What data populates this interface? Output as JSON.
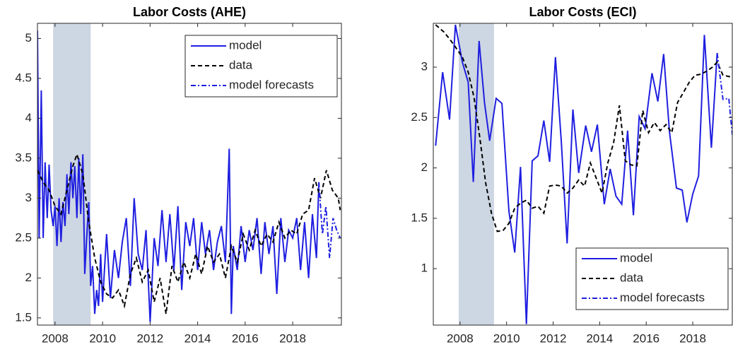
{
  "chart_data": [
    {
      "type": "line",
      "title": "Labor Costs (AHE)",
      "xlim": [
        2007.26,
        2020.05
      ],
      "ylim": [
        1.41,
        5.19
      ],
      "xticks": [
        2008,
        2010,
        2012,
        2014,
        2016,
        2018
      ],
      "yticks": [
        1.5,
        2,
        2.5,
        3,
        3.5,
        4,
        4.5,
        5
      ],
      "shaded_region": [
        2007.92,
        2009.5
      ],
      "shaded_color": "#cdd6e3",
      "legend": "upper right",
      "series": [
        {
          "name": "model",
          "color": "#1f1fe0",
          "style": "solid",
          "x": [
            2007.26,
            2007.33,
            2007.42,
            2007.5,
            2007.58,
            2007.67,
            2007.75,
            2007.83,
            2007.92,
            2008.0,
            2008.08,
            2008.17,
            2008.25,
            2008.33,
            2008.42,
            2008.5,
            2008.58,
            2008.67,
            2008.75,
            2008.83,
            2008.92,
            2009.0,
            2009.08,
            2009.17,
            2009.25,
            2009.33,
            2009.42,
            2009.5,
            2009.58,
            2009.67,
            2009.75,
            2009.83,
            2009.92,
            2010.0,
            2010.17,
            2010.33,
            2010.5,
            2010.67,
            2010.83,
            2011.0,
            2011.17,
            2011.33,
            2011.5,
            2011.67,
            2011.83,
            2012.0,
            2012.17,
            2012.33,
            2012.5,
            2012.67,
            2012.83,
            2013.0,
            2013.17,
            2013.33,
            2013.5,
            2013.67,
            2013.83,
            2014.0,
            2014.17,
            2014.33,
            2014.5,
            2014.67,
            2014.83,
            2015.0,
            2015.17,
            2015.33,
            2015.42,
            2015.5,
            2015.67,
            2015.83,
            2016.0,
            2016.17,
            2016.33,
            2016.5,
            2016.67,
            2016.83,
            2017.0,
            2017.17,
            2017.33,
            2017.5,
            2017.67,
            2017.83,
            2018.0,
            2018.17,
            2018.33,
            2018.5,
            2018.67,
            2018.83,
            2019.0,
            2019.1
          ],
          "values": [
            5.1,
            2.5,
            4.35,
            2.5,
            3.45,
            2.75,
            3.42,
            2.85,
            2.65,
            2.9,
            2.4,
            3.0,
            2.45,
            2.95,
            2.65,
            3.3,
            2.8,
            3.45,
            3.0,
            3.4,
            2.75,
            3.5,
            2.8,
            3.55,
            2.05,
            2.5,
            2.95,
            1.9,
            2.15,
            1.55,
            1.85,
            1.65,
            2.3,
            1.7,
            2.55,
            1.75,
            2.35,
            2.0,
            2.45,
            2.75,
            1.9,
            3.0,
            2.3,
            2.1,
            2.6,
            1.45,
            2.5,
            2.15,
            2.85,
            2.2,
            2.8,
            2.1,
            2.9,
            1.85,
            2.7,
            2.4,
            2.75,
            2.1,
            2.7,
            2.3,
            2.6,
            2.1,
            2.45,
            2.65,
            2.2,
            3.62,
            1.55,
            2.4,
            2.1,
            2.65,
            2.2,
            2.6,
            2.35,
            2.75,
            2.05,
            2.7,
            2.3,
            2.65,
            1.8,
            2.75,
            2.2,
            2.6,
            2.5,
            2.75,
            2.1,
            2.7,
            2.0,
            2.8,
            2.25,
            3.2
          ]
        },
        {
          "name": "data",
          "color": "#000000",
          "style": "dashed",
          "x": [
            2007.26,
            2007.5,
            2007.75,
            2008.0,
            2008.25,
            2008.5,
            2008.75,
            2008.92,
            2009.17,
            2009.42,
            2009.67,
            2009.92,
            2010.17,
            2010.42,
            2010.67,
            2010.92,
            2011.17,
            2011.42,
            2011.67,
            2011.92,
            2012.17,
            2012.42,
            2012.67,
            2012.92,
            2013.17,
            2013.42,
            2013.67,
            2013.92,
            2014.17,
            2014.42,
            2014.67,
            2014.92,
            2015.17,
            2015.42,
            2015.67,
            2015.92,
            2016.17,
            2016.42,
            2016.67,
            2016.92,
            2017.17,
            2017.42,
            2017.67,
            2017.92,
            2018.17,
            2018.42,
            2018.67,
            2018.92,
            2019.17,
            2019.42,
            2019.67,
            2019.92,
            2020.0
          ],
          "values": [
            3.35,
            3.2,
            3.1,
            2.9,
            2.8,
            3.1,
            3.4,
            3.55,
            3.3,
            2.7,
            2.25,
            1.95,
            1.8,
            1.75,
            1.85,
            1.65,
            2.05,
            2.25,
            1.95,
            2.1,
            1.7,
            2.0,
            1.55,
            2.15,
            1.95,
            2.2,
            2.0,
            2.3,
            2.05,
            2.4,
            2.2,
            2.3,
            2.0,
            2.4,
            2.2,
            2.55,
            2.35,
            2.6,
            2.4,
            2.55,
            2.45,
            2.7,
            2.5,
            2.6,
            2.55,
            2.8,
            2.85,
            3.25,
            3.0,
            3.35,
            3.1,
            3.0,
            2.85
          ]
        },
        {
          "name": "model forecasts",
          "color": "#1f1fe0",
          "style": "dashdot",
          "x": [
            2019.1,
            2019.25,
            2019.4,
            2019.55,
            2019.7,
            2019.85,
            2020.0
          ],
          "values": [
            3.2,
            2.55,
            2.9,
            2.25,
            2.75,
            2.6,
            2.5
          ]
        }
      ]
    },
    {
      "type": "line",
      "title": "Labor Costs (ECI)",
      "xlim": [
        2006.85,
        2019.7
      ],
      "ylim": [
        0.44,
        3.435
      ],
      "xticks": [
        2008,
        2010,
        2012,
        2014,
        2016,
        2018
      ],
      "yticks": [
        1,
        1.5,
        2,
        2.5,
        3
      ],
      "shaded_region": [
        2007.94,
        2009.46
      ],
      "shaded_color": "#cdd6e3",
      "legend": "lower right",
      "series": [
        {
          "name": "model",
          "color": "#1f1fe0",
          "style": "solid",
          "x": [
            2006.95,
            2007.25,
            2007.55,
            2007.8,
            2008.1,
            2008.35,
            2008.57,
            2008.82,
            2009.05,
            2009.27,
            2009.55,
            2009.8,
            2010.1,
            2010.35,
            2010.6,
            2010.85,
            2011.1,
            2011.35,
            2011.6,
            2011.85,
            2012.1,
            2012.35,
            2012.6,
            2012.85,
            2013.1,
            2013.4,
            2013.65,
            2013.9,
            2014.2,
            2014.45,
            2014.7,
            2014.95,
            2015.2,
            2015.45,
            2015.7,
            2015.95,
            2016.25,
            2016.5,
            2016.75,
            2017.0,
            2017.3,
            2017.55,
            2017.75,
            2018.0,
            2018.25,
            2018.5,
            2018.8,
            2019.05
          ],
          "values": [
            2.22,
            2.95,
            2.48,
            3.42,
            3.05,
            2.85,
            1.86,
            3.26,
            2.65,
            2.27,
            2.69,
            2.64,
            1.57,
            1.16,
            2.01,
            0.45,
            2.07,
            2.12,
            2.47,
            2.06,
            3.1,
            2.26,
            1.25,
            2.58,
            1.95,
            2.42,
            2.16,
            2.43,
            1.64,
            1.99,
            1.72,
            1.64,
            2.37,
            1.53,
            2.51,
            2.39,
            2.94,
            2.66,
            3.13,
            2.36,
            1.8,
            1.78,
            1.46,
            1.74,
            1.92,
            3.32,
            2.2,
            3.14
          ]
        },
        {
          "name": "data",
          "color": "#000000",
          "style": "dashed",
          "x": [
            2006.95,
            2007.3,
            2007.55,
            2007.8,
            2008.1,
            2008.35,
            2008.6,
            2008.85,
            2009.1,
            2009.35,
            2009.6,
            2009.85,
            2010.1,
            2010.35,
            2010.6,
            2010.85,
            2011.1,
            2011.35,
            2011.6,
            2011.85,
            2012.1,
            2012.35,
            2012.6,
            2012.85,
            2013.1,
            2013.35,
            2013.6,
            2013.85,
            2014.1,
            2014.35,
            2014.6,
            2014.85,
            2015.1,
            2015.35,
            2015.6,
            2015.85,
            2016.1,
            2016.35,
            2016.6,
            2016.85,
            2017.1,
            2017.35,
            2017.6,
            2017.85,
            2018.1,
            2018.35,
            2018.6,
            2018.85,
            2019.05,
            2019.3,
            2019.7
          ],
          "values": [
            3.42,
            3.35,
            3.28,
            3.2,
            3.1,
            2.95,
            2.7,
            2.3,
            1.85,
            1.55,
            1.37,
            1.38,
            1.45,
            1.6,
            1.65,
            1.68,
            1.6,
            1.62,
            1.55,
            1.82,
            1.83,
            1.82,
            1.75,
            1.8,
            1.88,
            1.82,
            2.05,
            1.9,
            1.75,
            2.05,
            2.25,
            2.62,
            2.07,
            2.03,
            2.02,
            2.57,
            2.35,
            2.45,
            2.37,
            2.43,
            2.35,
            2.65,
            2.75,
            2.85,
            2.92,
            2.93,
            2.96,
            3.0,
            3.05,
            2.92,
            2.9
          ]
        },
        {
          "name": "model forecasts",
          "color": "#1f1fe0",
          "style": "dashdot",
          "x": [
            2019.05,
            2019.3,
            2019.55,
            2019.7
          ],
          "values": [
            3.14,
            2.68,
            2.69,
            2.33
          ]
        }
      ]
    }
  ]
}
